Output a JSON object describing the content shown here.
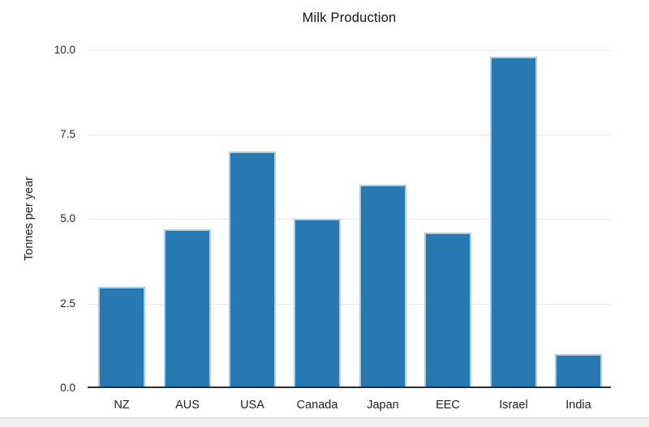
{
  "chart_data": {
    "type": "bar",
    "title": "Milk Production",
    "ylabel": "Tonnes per year",
    "xlabel": "",
    "categories": [
      "NZ",
      "AUS",
      "USA",
      "Canada",
      "Japan",
      "EEC",
      "Israel",
      "India"
    ],
    "values": [
      3.0,
      4.7,
      7.0,
      5.0,
      6.0,
      4.6,
      9.8,
      1.0
    ],
    "ylim": [
      0,
      10
    ],
    "yticks": [
      0.0,
      2.5,
      5.0,
      7.5,
      10.0
    ],
    "ytick_labels": [
      "0.0",
      "2.5",
      "5.0",
      "7.5",
      "10.0"
    ],
    "grid": true,
    "legend": false,
    "colors": {
      "bar_fill": "#2879b2",
      "bar_edge": "#abcce4",
      "grid_color": "#e8e8e8",
      "axis_color": "#2e2e2e",
      "background": "#ffffff",
      "footer_strip": "#f0f0f0"
    }
  }
}
